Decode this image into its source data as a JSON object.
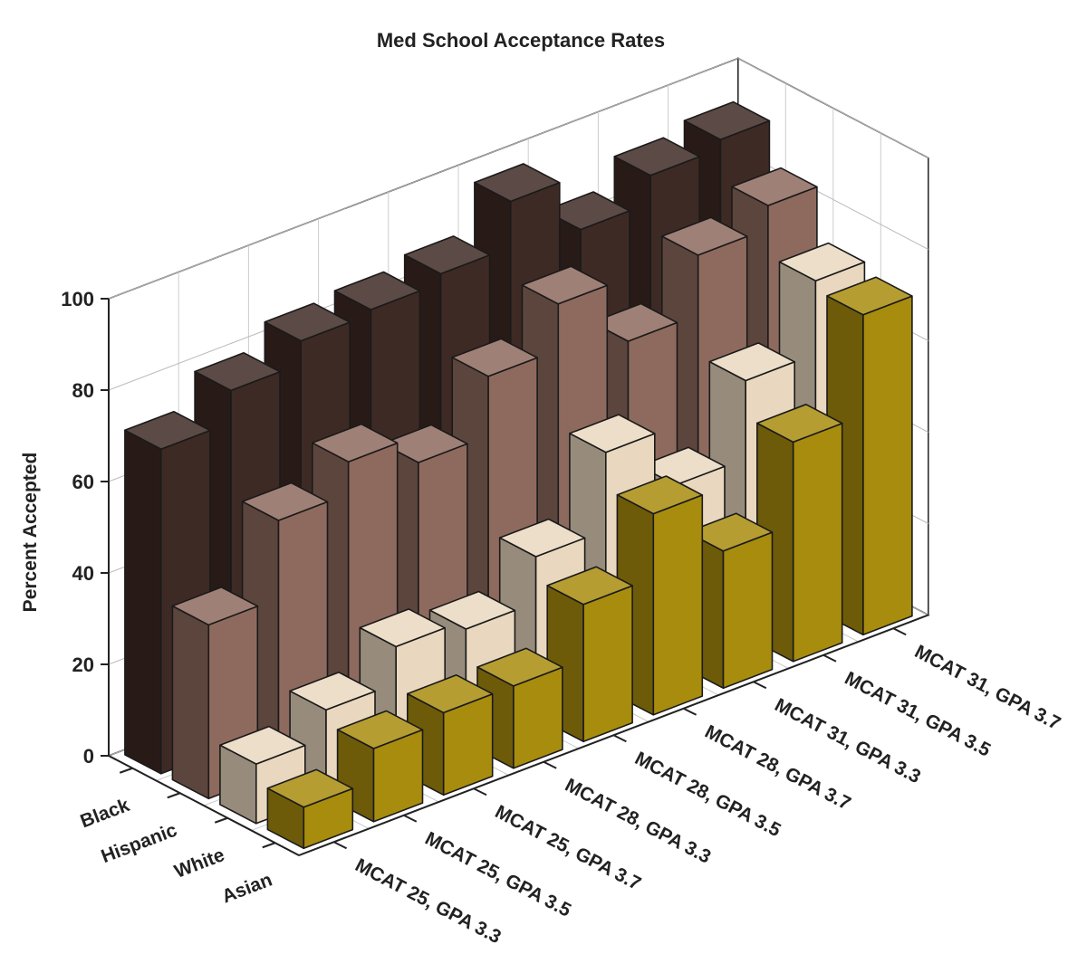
{
  "chart_data": {
    "type": "bar",
    "title": "Med School Acceptance Rates",
    "y_label": "Percent Accepted",
    "categories": [
      "MCAT 25, GPA 3.3",
      "MCAT 25, GPA 3.5",
      "MCAT 25, GPA 3.7",
      "MCAT 28, GPA 3.3",
      "MCAT 28, GPA 3.5",
      "MCAT 28, GPA 3.7",
      "MCAT 31, GPA 3.3",
      "MCAT 31, GPA 3.5",
      "MCAT 31, GPA 3.7"
    ],
    "series": [
      {
        "name": "Black",
        "color": "#3e2a24",
        "values": [
          71,
          78,
          83,
          84,
          86,
          96,
          84,
          90,
          92
        ]
      },
      {
        "name": "Hispanic",
        "color": "#8e6a5e",
        "values": [
          38,
          55,
          62,
          56,
          69,
          79,
          65,
          78,
          83
        ]
      },
      {
        "name": "White",
        "color": "#e9d8bf",
        "values": [
          13,
          19,
          27,
          25,
          35,
          52,
          39,
          56,
          72
        ]
      },
      {
        "name": "Asian",
        "color": "#a88c0e",
        "values": [
          9,
          16,
          18,
          18,
          30,
          44,
          30,
          48,
          70
        ]
      }
    ],
    "ylim": [
      0,
      100
    ],
    "yticks": [
      0,
      20,
      40,
      60,
      80,
      100
    ],
    "grid": true
  }
}
